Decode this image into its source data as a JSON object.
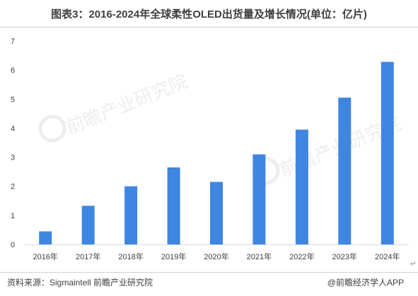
{
  "title": "图表3：2016-2024年全球柔性OLED出货量及增长情况(单位：亿片)",
  "source": "资料来源：Sigmaintell 前瞻产业研究院",
  "brand": "@前瞻经济学人APP",
  "watermark": "前瞻产业研究院",
  "colors": {
    "bar": "#3f86e3",
    "axis": "#d9d9d9",
    "text": "#404040"
  },
  "chart_data": {
    "type": "bar",
    "title": "图表3：2016-2024年全球柔性OLED出货量及增长情况(单位：亿片)",
    "xlabel": "",
    "ylabel": "",
    "categories": [
      "2016年",
      "2017年",
      "2018年",
      "2019年",
      "2020年",
      "2021年",
      "2022年",
      "2023年",
      "2024年"
    ],
    "values": [
      0.45,
      1.33,
      2.0,
      2.65,
      2.15,
      3.1,
      3.95,
      5.05,
      6.28
    ],
    "ylim": [
      0,
      7
    ],
    "yticks": [
      "0",
      "1",
      "2",
      "3",
      "4",
      "5",
      "6",
      "7"
    ],
    "grid": false,
    "legend": "none"
  }
}
